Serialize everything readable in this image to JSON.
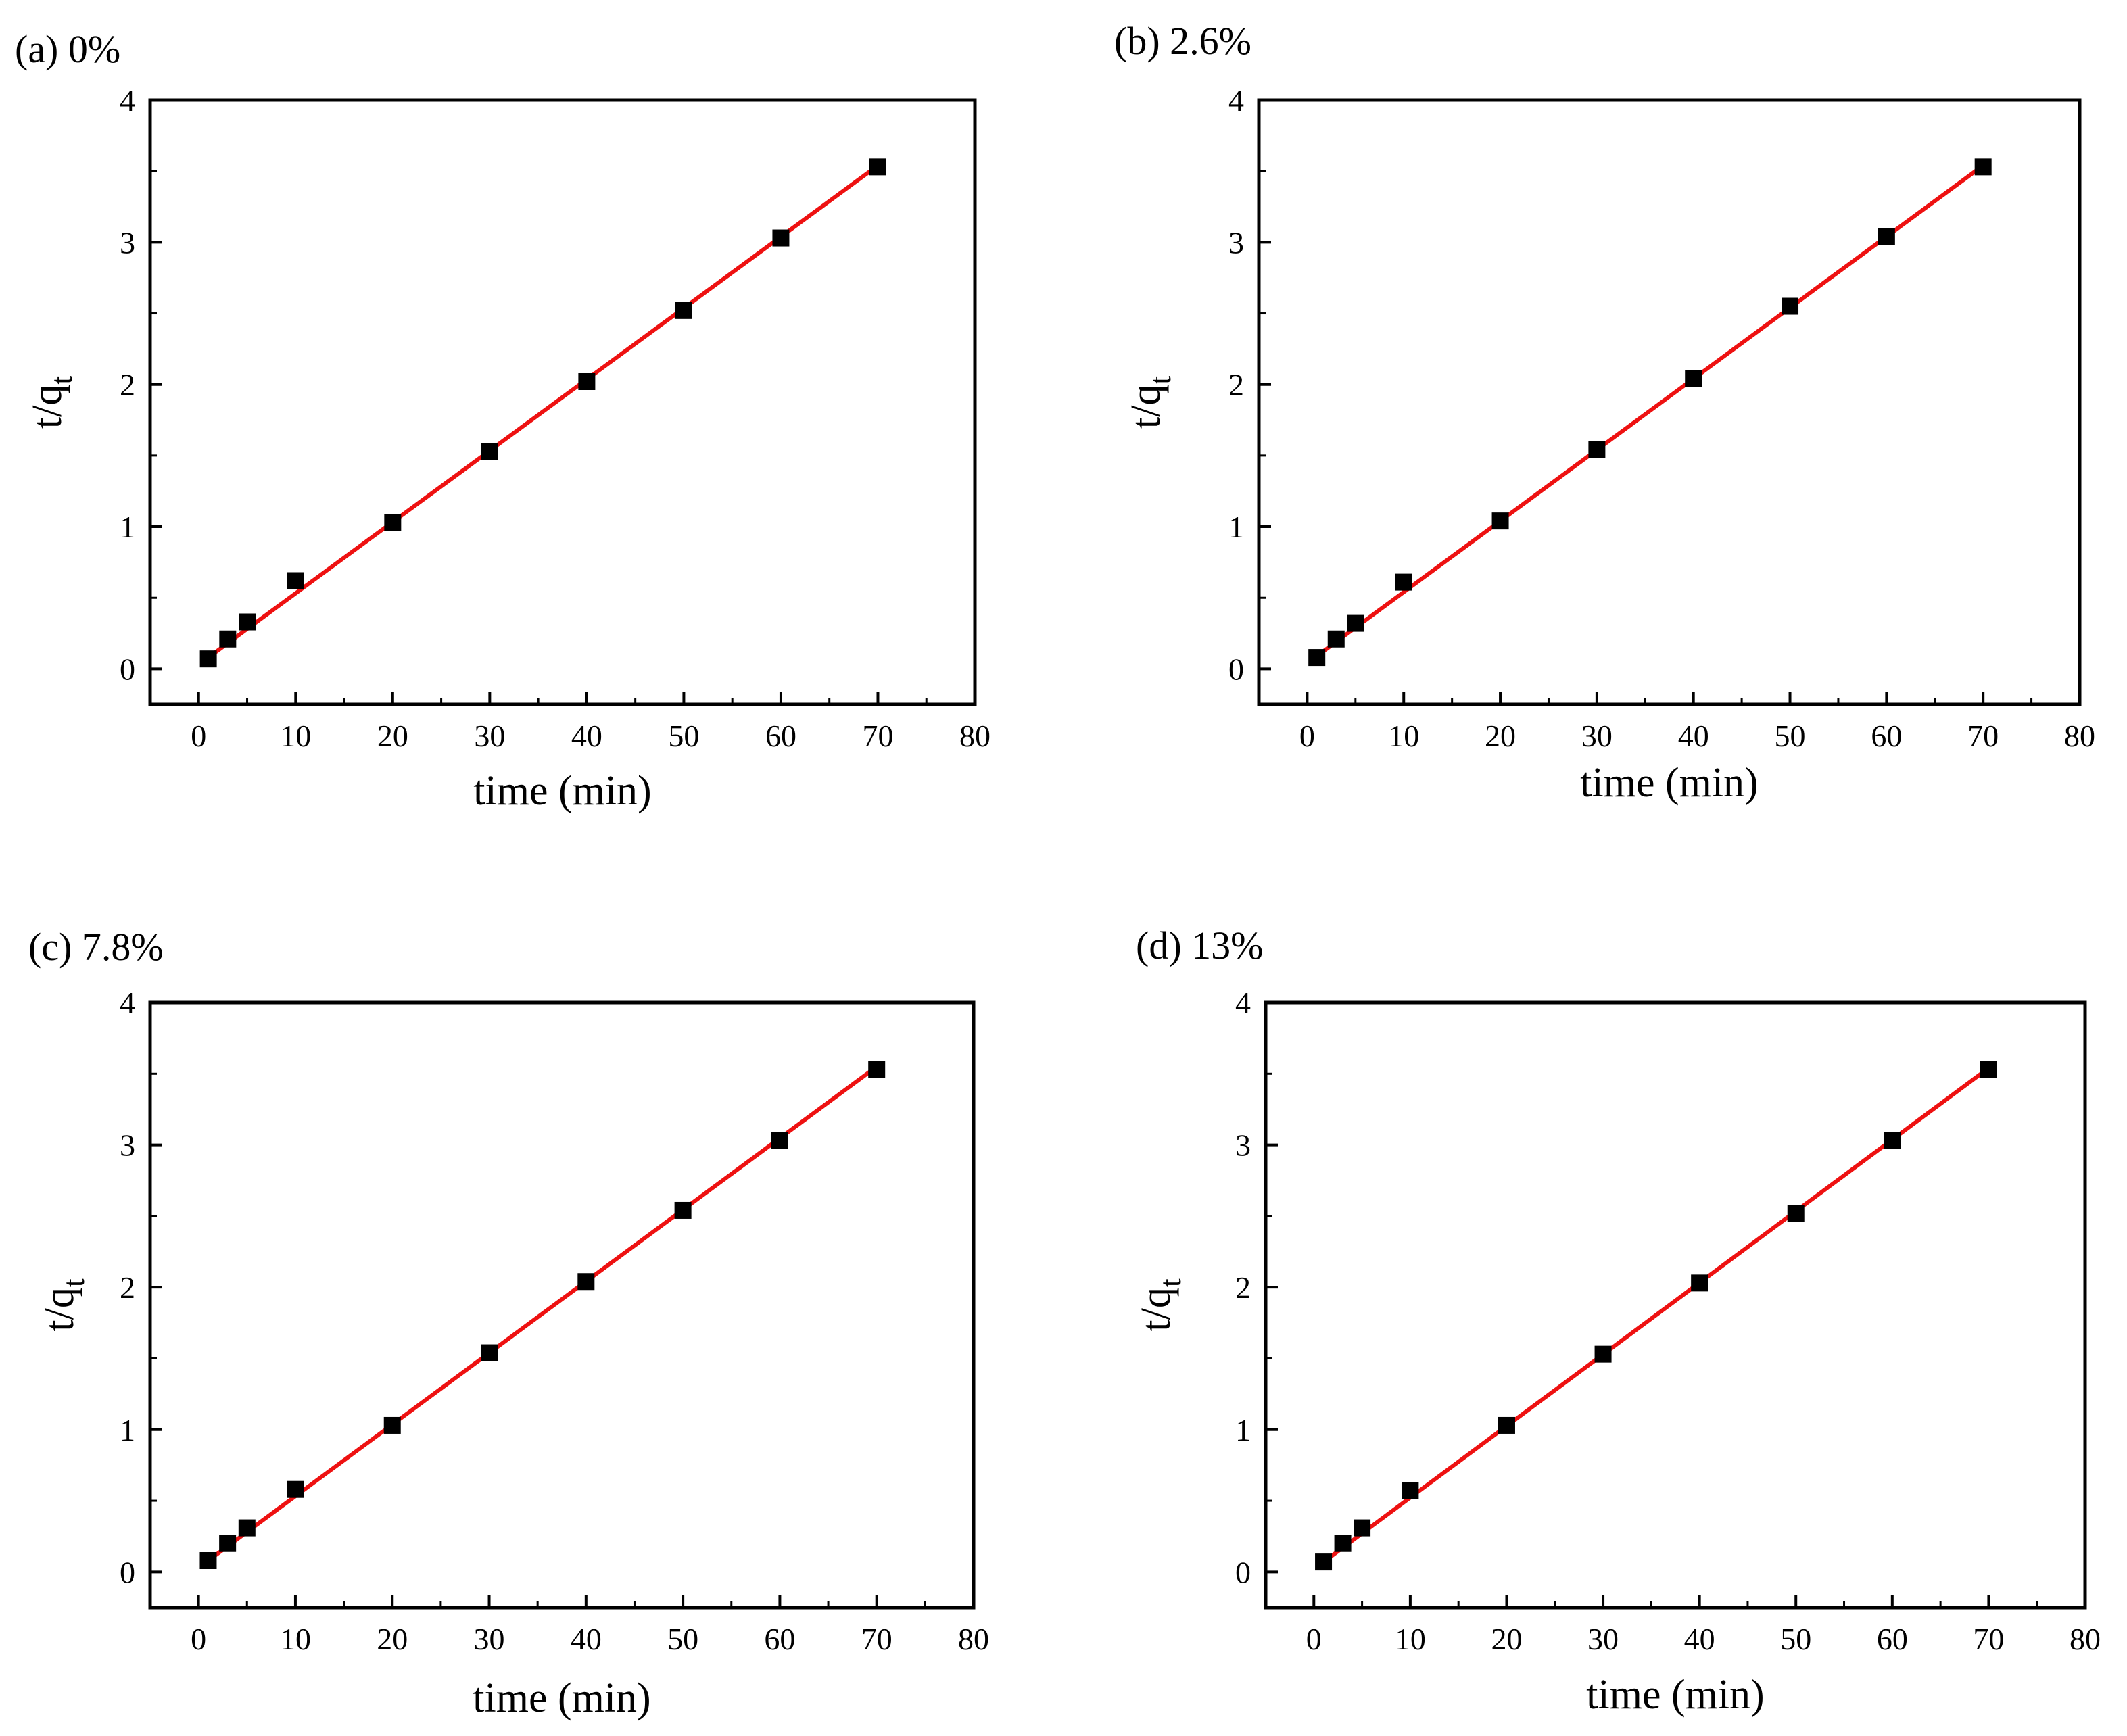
{
  "figure": {
    "fit_color": "#ee1111",
    "marker_color": "#000000",
    "axis_color": "#000000"
  },
  "chart_data": [
    {
      "type": "scatter",
      "panel_label": "(a) 0%",
      "xlabel": "time (min)",
      "ylabel": {
        "main": "t/q",
        "subscript": "t"
      },
      "xlim": [
        -5,
        80
      ],
      "ylim": [
        -0.25,
        4
      ],
      "xticks": [
        0,
        10,
        20,
        30,
        40,
        50,
        60,
        70,
        80
      ],
      "yticks": [
        0,
        1,
        2,
        3,
        4
      ],
      "series": [
        {
          "name": "data",
          "marker": "square",
          "x": [
            1,
            3,
            5,
            10,
            20,
            30,
            40,
            50,
            60,
            70
          ],
          "y": [
            0.07,
            0.21,
            0.33,
            0.62,
            1.03,
            1.53,
            2.02,
            2.52,
            3.03,
            3.53
          ]
        },
        {
          "name": "linear fit",
          "x": [
            1,
            70
          ],
          "y": [
            0.08,
            3.54
          ]
        }
      ]
    },
    {
      "type": "scatter",
      "panel_label": "(b) 2.6%",
      "xlabel": "time (min)",
      "ylabel": {
        "main": "t/q",
        "subscript": "t"
      },
      "xlim": [
        -5,
        80
      ],
      "ylim": [
        -0.25,
        4
      ],
      "xticks": [
        0,
        10,
        20,
        30,
        40,
        50,
        60,
        70,
        80
      ],
      "yticks": [
        0,
        1,
        2,
        3,
        4
      ],
      "series": [
        {
          "name": "data",
          "marker": "square",
          "x": [
            1,
            3,
            5,
            10,
            20,
            30,
            40,
            50,
            60,
            70
          ],
          "y": [
            0.08,
            0.21,
            0.32,
            0.61,
            1.04,
            1.54,
            2.04,
            2.55,
            3.04,
            3.53
          ]
        },
        {
          "name": "linear fit",
          "x": [
            1,
            70
          ],
          "y": [
            0.09,
            3.54
          ]
        }
      ]
    },
    {
      "type": "scatter",
      "panel_label": "(c) 7.8%",
      "xlabel": "time (min)",
      "ylabel": {
        "main": "t/q",
        "subscript": "t"
      },
      "xlim": [
        -5,
        80
      ],
      "ylim": [
        -0.25,
        4
      ],
      "xticks": [
        0,
        10,
        20,
        30,
        40,
        50,
        60,
        70,
        80
      ],
      "yticks": [
        0,
        1,
        2,
        3,
        4
      ],
      "series": [
        {
          "name": "data",
          "marker": "square",
          "x": [
            1,
            3,
            5,
            10,
            20,
            30,
            40,
            50,
            60,
            70
          ],
          "y": [
            0.08,
            0.2,
            0.31,
            0.58,
            1.03,
            1.54,
            2.04,
            2.54,
            3.03,
            3.53
          ]
        },
        {
          "name": "linear fit",
          "x": [
            1,
            70
          ],
          "y": [
            0.08,
            3.55
          ]
        }
      ]
    },
    {
      "type": "scatter",
      "panel_label": "(d) 13%",
      "xlabel": "time (min)",
      "ylabel": {
        "main": "t/q",
        "subscript": "t"
      },
      "xlim": [
        -5,
        80
      ],
      "ylim": [
        -0.25,
        4
      ],
      "xticks": [
        0,
        10,
        20,
        30,
        40,
        50,
        60,
        70,
        80
      ],
      "yticks": [
        0,
        1,
        2,
        3,
        4
      ],
      "series": [
        {
          "name": "data",
          "marker": "square",
          "x": [
            1,
            3,
            5,
            10,
            20,
            30,
            40,
            50,
            60,
            70
          ],
          "y": [
            0.07,
            0.2,
            0.31,
            0.57,
            1.03,
            1.53,
            2.03,
            2.52,
            3.03,
            3.53
          ]
        },
        {
          "name": "linear fit",
          "x": [
            1,
            70
          ],
          "y": [
            0.07,
            3.54
          ]
        }
      ]
    }
  ]
}
